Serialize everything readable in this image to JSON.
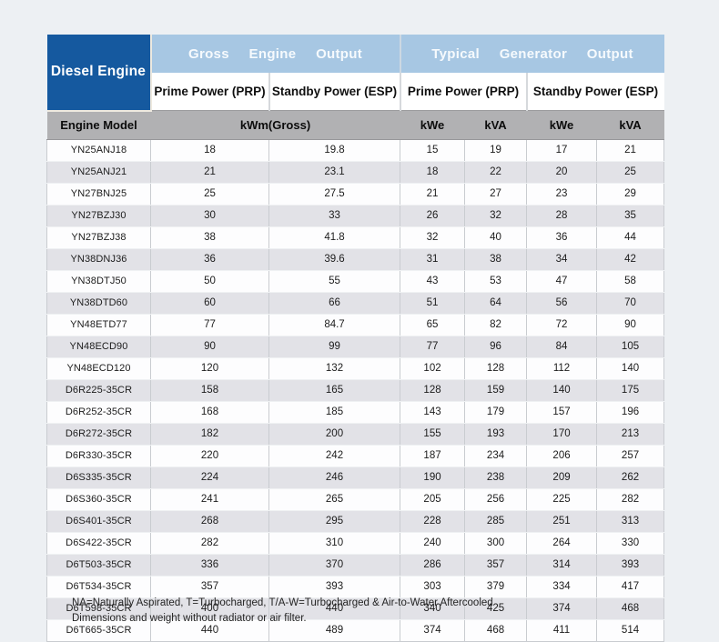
{
  "header": {
    "corner_label": "Diesel Engine",
    "gross_section": {
      "title": "Gross Engine Output",
      "prime": "Prime Power (PRP)",
      "standby": "Standby Power (ESP)"
    },
    "typical_section": {
      "title": "Typical Generator Output",
      "prime": "Prime Power (PRP)",
      "standby": "Standby Power (ESP)"
    },
    "unit_row": {
      "engine_model": "Engine Model",
      "gross_unit": "kWm(Gross)",
      "prime_kwe": "kWe",
      "prime_kva": "kVA",
      "standby_kwe": "kWe",
      "standby_kva": "kVA"
    }
  },
  "rows": [
    {
      "model": "YN25ANJ18",
      "values": [
        "18",
        "19.8",
        "15",
        "19",
        "17",
        "21"
      ]
    },
    {
      "model": "YN25ANJ21",
      "values": [
        "21",
        "23.1",
        "18",
        "22",
        "20",
        "25"
      ]
    },
    {
      "model": "YN27BNJ25",
      "values": [
        "25",
        "27.5",
        "21",
        "27",
        "23",
        "29"
      ]
    },
    {
      "model": "YN27BZJ30",
      "values": [
        "30",
        "33",
        "26",
        "32",
        "28",
        "35"
      ]
    },
    {
      "model": "YN27BZJ38",
      "values": [
        "38",
        "41.8",
        "32",
        "40",
        "36",
        "44"
      ]
    },
    {
      "model": "YN38DNJ36",
      "values": [
        "36",
        "39.6",
        "31",
        "38",
        "34",
        "42"
      ]
    },
    {
      "model": "YN38DTJ50",
      "values": [
        "50",
        "55",
        "43",
        "53",
        "47",
        "58"
      ]
    },
    {
      "model": "YN38DTD60",
      "values": [
        "60",
        "66",
        "51",
        "64",
        "56",
        "70"
      ]
    },
    {
      "model": "YN48ETD77",
      "values": [
        "77",
        "84.7",
        "65",
        "82",
        "72",
        "90"
      ]
    },
    {
      "model": "YN48ECD90",
      "values": [
        "90",
        "99",
        "77",
        "96",
        "84",
        "105"
      ]
    },
    {
      "model": "YN48ECD120",
      "values": [
        "120",
        "132",
        "102",
        "128",
        "112",
        "140"
      ]
    },
    {
      "model": "D6R225-35CR",
      "values": [
        "158",
        "165",
        "128",
        "159",
        "140",
        "175"
      ]
    },
    {
      "model": "D6R252-35CR",
      "values": [
        "168",
        "185",
        "143",
        "179",
        "157",
        "196"
      ]
    },
    {
      "model": "D6R272-35CR",
      "values": [
        "182",
        "200",
        "155",
        "193",
        "170",
        "213"
      ]
    },
    {
      "model": "D6R330-35CR",
      "values": [
        "220",
        "242",
        "187",
        "234",
        "206",
        "257"
      ]
    },
    {
      "model": "D6S335-35CR",
      "values": [
        "224",
        "246",
        "190",
        "238",
        "209",
        "262"
      ]
    },
    {
      "model": "D6S360-35CR",
      "values": [
        "241",
        "265",
        "205",
        "256",
        "225",
        "282"
      ]
    },
    {
      "model": "D6S401-35CR",
      "values": [
        "268",
        "295",
        "228",
        "285",
        "251",
        "313"
      ]
    },
    {
      "model": "D6S422-35CR",
      "values": [
        "282",
        "310",
        "240",
        "300",
        "264",
        "330"
      ]
    },
    {
      "model": "D6T503-35CR",
      "values": [
        "336",
        "370",
        "286",
        "357",
        "314",
        "393"
      ]
    },
    {
      "model": "D6T534-35CR",
      "values": [
        "357",
        "393",
        "303",
        "379",
        "334",
        "417"
      ]
    },
    {
      "model": "D6T598-35CR",
      "values": [
        "400",
        "440",
        "340",
        "425",
        "374",
        "468"
      ]
    },
    {
      "model": "D6T665-35CR",
      "values": [
        "440",
        "489",
        "374",
        "468",
        "411",
        "514"
      ]
    }
  ],
  "notes": {
    "line1": "NA=Naturally Aspirated, T=Turbocharged, T/A-W=Turbocharged & Air-to-Water Aftercooled",
    "line2": "Dimensions and weight without radiator or air filter."
  },
  "colors": {
    "dark_blue": "#15599f",
    "band_blue": "#a7c7e3",
    "header_gray": "#b1b1b3",
    "stripe": "#e2e2e7",
    "page_bg": "#edf0f3"
  }
}
